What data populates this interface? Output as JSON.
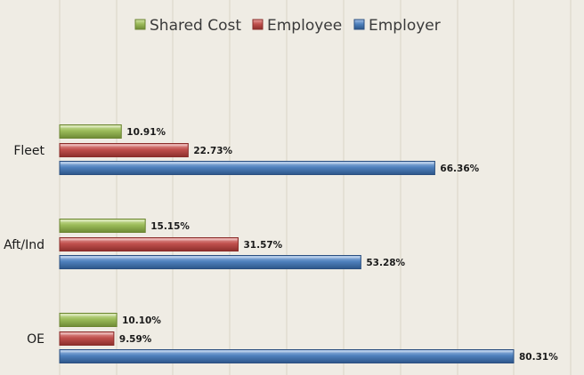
{
  "chart_data": {
    "type": "bar",
    "orientation": "horizontal",
    "categories": [
      "Fleet",
      "Aft/Ind",
      "OE"
    ],
    "series": [
      {
        "name": "Shared Cost",
        "values": [
          10.91,
          15.15,
          10.1
        ],
        "labels": [
          "10.91%",
          "15.15%",
          "10.10%"
        ],
        "color": "#9bbb59"
      },
      {
        "name": "Employee",
        "values": [
          22.73,
          31.57,
          9.59
        ],
        "labels": [
          "22.73%",
          "31.57%",
          "9.59%"
        ],
        "color": "#c0504d"
      },
      {
        "name": "Employer",
        "values": [
          66.36,
          53.28,
          80.31
        ],
        "labels": [
          "66.36%",
          "53.28%",
          "80.31%"
        ],
        "color": "#4f81bd"
      }
    ],
    "legend_order": [
      0,
      1,
      2
    ],
    "legend_position": "top",
    "xlim": [
      0,
      90
    ],
    "grid": true,
    "title": "",
    "xlabel": "",
    "ylabel": ""
  }
}
